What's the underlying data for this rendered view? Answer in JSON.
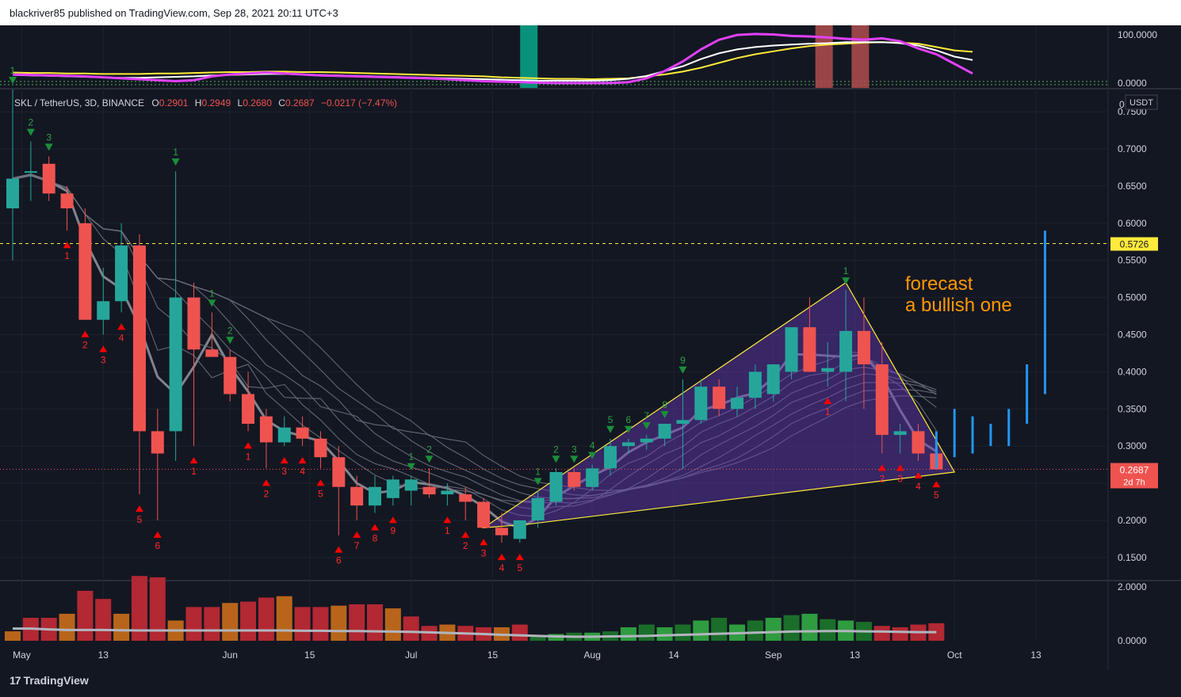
{
  "header": {
    "publisher": "blackriver85 published on TradingView.com, Sep 28, 2021 20:11 UTC+3"
  },
  "footer": {
    "brand": "TradingView"
  },
  "symbol": {
    "name": "SKL / TetherUS, 3D, BINANCE",
    "o_label": "O",
    "o": "0.2901",
    "h_label": "H",
    "h": "0.2949",
    "l_label": "L",
    "l": "0.2680",
    "c_label": "C",
    "c": "0.2687",
    "change": "−0.0217 (−7.47%)",
    "currency": "USDT",
    "top_axis_stub": "0"
  },
  "colors": {
    "up": "#26a69a",
    "down": "#ef5350",
    "background": "#131722",
    "annotation": "#ff9800"
  },
  "annotation": {
    "line1": "forecast",
    "line2": "a bullish one"
  },
  "price_labels": {
    "level": "0.5726",
    "level_value": 0.5726,
    "last": "0.2687",
    "last_value": 0.2687,
    "countdown": "2d 7h"
  },
  "chart_data": {
    "type": "candlestick",
    "price_axis": {
      "ticks": [
        "0.7500",
        "0.7000",
        "0.6500",
        "0.6000",
        "0.5500",
        "0.5000",
        "0.4500",
        "0.4000",
        "0.3500",
        "0.3000",
        "0.2500",
        "0.2000",
        "0.1500"
      ],
      "tick_values": [
        0.75,
        0.7,
        0.65,
        0.6,
        0.55,
        0.5,
        0.45,
        0.4,
        0.35,
        0.3,
        0.25,
        0.2,
        0.15
      ],
      "range": [
        0.12,
        0.78
      ]
    },
    "time_axis": {
      "labels": [
        "May",
        "13",
        "Jun",
        "15",
        "Jul",
        "15",
        "Aug",
        "14",
        "Sep",
        "13",
        "Oct",
        "13"
      ],
      "label_bars": [
        0.5,
        5,
        12,
        16.4,
        22,
        26.5,
        32,
        36.5,
        42,
        46.5,
        52,
        56.5
      ],
      "bars_total": 60
    },
    "candles": [
      {
        "o": 0.62,
        "h": 0.78,
        "l": 0.55,
        "c": 0.66
      },
      {
        "o": 0.67,
        "h": 0.71,
        "l": 0.63,
        "c": 0.67
      },
      {
        "o": 0.68,
        "h": 0.69,
        "l": 0.63,
        "c": 0.64
      },
      {
        "o": 0.64,
        "h": 0.65,
        "l": 0.59,
        "c": 0.62
      },
      {
        "o": 0.6,
        "h": 0.62,
        "l": 0.47,
        "c": 0.47
      },
      {
        "o": 0.47,
        "h": 0.54,
        "l": 0.45,
        "c": 0.495
      },
      {
        "o": 0.495,
        "h": 0.6,
        "l": 0.48,
        "c": 0.57
      },
      {
        "o": 0.57,
        "h": 0.585,
        "l": 0.235,
        "c": 0.32
      },
      {
        "o": 0.32,
        "h": 0.35,
        "l": 0.2,
        "c": 0.29
      },
      {
        "o": 0.32,
        "h": 0.67,
        "l": 0.28,
        "c": 0.5
      },
      {
        "o": 0.5,
        "h": 0.52,
        "l": 0.3,
        "c": 0.43
      },
      {
        "o": 0.43,
        "h": 0.48,
        "l": 0.42,
        "c": 0.42
      },
      {
        "o": 0.42,
        "h": 0.43,
        "l": 0.36,
        "c": 0.37
      },
      {
        "o": 0.37,
        "h": 0.4,
        "l": 0.32,
        "c": 0.33
      },
      {
        "o": 0.34,
        "h": 0.35,
        "l": 0.27,
        "c": 0.305
      },
      {
        "o": 0.305,
        "h": 0.34,
        "l": 0.3,
        "c": 0.325
      },
      {
        "o": 0.325,
        "h": 0.34,
        "l": 0.3,
        "c": 0.31
      },
      {
        "o": 0.31,
        "h": 0.32,
        "l": 0.27,
        "c": 0.285
      },
      {
        "o": 0.285,
        "h": 0.3,
        "l": 0.18,
        "c": 0.245
      },
      {
        "o": 0.245,
        "h": 0.26,
        "l": 0.2,
        "c": 0.22
      },
      {
        "o": 0.22,
        "h": 0.26,
        "l": 0.21,
        "c": 0.245
      },
      {
        "o": 0.23,
        "h": 0.26,
        "l": 0.22,
        "c": 0.255
      },
      {
        "o": 0.24,
        "h": 0.26,
        "l": 0.22,
        "c": 0.255
      },
      {
        "o": 0.245,
        "h": 0.27,
        "l": 0.23,
        "c": 0.235
      },
      {
        "o": 0.235,
        "h": 0.25,
        "l": 0.22,
        "c": 0.24
      },
      {
        "o": 0.235,
        "h": 0.245,
        "l": 0.2,
        "c": 0.225
      },
      {
        "o": 0.225,
        "h": 0.23,
        "l": 0.19,
        "c": 0.19
      },
      {
        "o": 0.19,
        "h": 0.21,
        "l": 0.17,
        "c": 0.18
      },
      {
        "o": 0.175,
        "h": 0.2,
        "l": 0.17,
        "c": 0.2
      },
      {
        "o": 0.2,
        "h": 0.24,
        "l": 0.19,
        "c": 0.23
      },
      {
        "o": 0.225,
        "h": 0.27,
        "l": 0.22,
        "c": 0.265
      },
      {
        "o": 0.265,
        "h": 0.27,
        "l": 0.24,
        "c": 0.245
      },
      {
        "o": 0.245,
        "h": 0.275,
        "l": 0.24,
        "c": 0.27
      },
      {
        "o": 0.27,
        "h": 0.31,
        "l": 0.26,
        "c": 0.3
      },
      {
        "o": 0.3,
        "h": 0.31,
        "l": 0.29,
        "c": 0.305
      },
      {
        "o": 0.305,
        "h": 0.315,
        "l": 0.295,
        "c": 0.31
      },
      {
        "o": 0.31,
        "h": 0.33,
        "l": 0.3,
        "c": 0.33
      },
      {
        "o": 0.33,
        "h": 0.39,
        "l": 0.27,
        "c": 0.335
      },
      {
        "o": 0.335,
        "h": 0.39,
        "l": 0.33,
        "c": 0.38
      },
      {
        "o": 0.38,
        "h": 0.39,
        "l": 0.34,
        "c": 0.35
      },
      {
        "o": 0.35,
        "h": 0.38,
        "l": 0.34,
        "c": 0.365
      },
      {
        "o": 0.365,
        "h": 0.41,
        "l": 0.35,
        "c": 0.4
      },
      {
        "o": 0.37,
        "h": 0.41,
        "l": 0.36,
        "c": 0.41
      },
      {
        "o": 0.4,
        "h": 0.46,
        "l": 0.39,
        "c": 0.46
      },
      {
        "o": 0.46,
        "h": 0.5,
        "l": 0.4,
        "c": 0.4
      },
      {
        "o": 0.4,
        "h": 0.44,
        "l": 0.38,
        "c": 0.405
      },
      {
        "o": 0.4,
        "h": 0.51,
        "l": 0.36,
        "c": 0.455
      },
      {
        "o": 0.455,
        "h": 0.5,
        "l": 0.35,
        "c": 0.41
      },
      {
        "o": 0.41,
        "h": 0.44,
        "l": 0.29,
        "c": 0.315
      },
      {
        "o": 0.315,
        "h": 0.33,
        "l": 0.29,
        "c": 0.32
      },
      {
        "o": 0.32,
        "h": 0.33,
        "l": 0.28,
        "c": 0.29
      },
      {
        "o": 0.2901,
        "h": 0.2949,
        "l": 0.268,
        "c": 0.2687
      }
    ],
    "forecast_bars": [
      {
        "bar": 51,
        "low": 0.27,
        "high": 0.32
      },
      {
        "bar": 52,
        "low": 0.285,
        "high": 0.35
      },
      {
        "bar": 53,
        "low": 0.29,
        "high": 0.34
      },
      {
        "bar": 54,
        "low": 0.3,
        "high": 0.33
      },
      {
        "bar": 55,
        "low": 0.3,
        "high": 0.35
      },
      {
        "bar": 56,
        "low": 0.33,
        "high": 0.41
      },
      {
        "bar": 57,
        "low": 0.37,
        "high": 0.59
      }
    ],
    "sell_counts": [
      {
        "bar": 0,
        "label": "1"
      },
      {
        "bar": 1,
        "label": "2"
      },
      {
        "bar": 2,
        "label": "3"
      },
      {
        "bar": 9,
        "label": "1"
      },
      {
        "bar": 11,
        "label": "1"
      },
      {
        "bar": 12,
        "label": "2"
      },
      {
        "bar": 22,
        "label": "1"
      },
      {
        "bar": 23,
        "label": "2"
      },
      {
        "bar": 29,
        "label": "1"
      },
      {
        "bar": 30,
        "label": "2"
      },
      {
        "bar": 31,
        "label": "3"
      },
      {
        "bar": 32,
        "label": "4"
      },
      {
        "bar": 33,
        "label": "5"
      },
      {
        "bar": 34,
        "label": "6"
      },
      {
        "bar": 35,
        "label": "7"
      },
      {
        "bar": 36,
        "label": "8"
      },
      {
        "bar": 37,
        "label": "9"
      },
      {
        "bar": 46,
        "label": "1"
      }
    ],
    "buy_counts": [
      {
        "bar": 3,
        "label": "1"
      },
      {
        "bar": 4,
        "label": "2"
      },
      {
        "bar": 5,
        "label": "3"
      },
      {
        "bar": 6,
        "label": "4"
      },
      {
        "bar": 7,
        "label": "5"
      },
      {
        "bar": 8,
        "label": "6"
      },
      {
        "bar": 10,
        "label": "1"
      },
      {
        "bar": 13,
        "label": "1"
      },
      {
        "bar": 14,
        "label": "2"
      },
      {
        "bar": 15,
        "label": "3"
      },
      {
        "bar": 16,
        "label": "4"
      },
      {
        "bar": 17,
        "label": "5"
      },
      {
        "bar": 18,
        "label": "6"
      },
      {
        "bar": 19,
        "label": "7"
      },
      {
        "bar": 20,
        "label": "8"
      },
      {
        "bar": 21,
        "label": "9"
      },
      {
        "bar": 24,
        "label": "1"
      },
      {
        "bar": 25,
        "label": "2"
      },
      {
        "bar": 26,
        "label": "3"
      },
      {
        "bar": 27,
        "label": "4"
      },
      {
        "bar": 28,
        "label": "5"
      },
      {
        "bar": 45,
        "label": "1"
      },
      {
        "bar": 48,
        "label": "2"
      },
      {
        "bar": 49,
        "label": "3"
      },
      {
        "bar": 50,
        "label": "4"
      },
      {
        "bar": 51,
        "label": "5"
      }
    ],
    "triangle": [
      {
        "bar": 26,
        "price": 0.19
      },
      {
        "bar": 46,
        "price": 0.52
      },
      {
        "bar": 52,
        "price": 0.265
      },
      {
        "bar": 28.5,
        "price": 0.195
      }
    ],
    "vol_axis": {
      "ticks": [
        "2.0000",
        "0.0000"
      ],
      "tick_values": [
        2,
        0
      ],
      "range": [
        0,
        2.2
      ]
    },
    "volume": [
      0.35,
      0.85,
      0.85,
      1.0,
      1.85,
      1.55,
      1.0,
      2.4,
      2.35,
      0.75,
      1.25,
      1.25,
      1.4,
      1.45,
      1.6,
      1.65,
      1.25,
      1.25,
      1.3,
      1.35,
      1.35,
      1.2,
      0.9,
      0.55,
      0.6,
      0.55,
      0.5,
      0.5,
      0.6,
      0.2,
      0.25,
      0.3,
      0.3,
      0.35,
      0.5,
      0.6,
      0.5,
      0.6,
      0.75,
      0.85,
      0.6,
      0.75,
      0.85,
      0.95,
      1.0,
      0.8,
      0.75,
      0.7,
      0.55,
      0.5,
      0.6,
      0.65
    ],
    "vol_ma": [
      0.45,
      0.45,
      0.42,
      0.4,
      0.4,
      0.4,
      0.39,
      0.38,
      0.38,
      0.38,
      0.38,
      0.38,
      0.38,
      0.38,
      0.38,
      0.38,
      0.37,
      0.37,
      0.36,
      0.36,
      0.35,
      0.34,
      0.33,
      0.31,
      0.29,
      0.27,
      0.25,
      0.22,
      0.2,
      0.18,
      0.16,
      0.15,
      0.15,
      0.16,
      0.17,
      0.18,
      0.2,
      0.22,
      0.24,
      0.26,
      0.28,
      0.3,
      0.32,
      0.34,
      0.35,
      0.36,
      0.36,
      0.35,
      0.34,
      0.33,
      0.32,
      0.32
    ],
    "osc_axis": {
      "ticks": [
        "100.0000",
        "0.0000"
      ],
      "tick_values": [
        100,
        0
      ],
      "range": [
        -10,
        120
      ]
    },
    "osc_magenta": [
      18,
      17,
      16,
      15,
      14,
      12,
      10,
      8,
      6,
      4,
      6,
      14,
      18,
      20,
      22,
      20,
      18,
      16,
      15,
      14,
      13,
      12,
      11,
      10,
      8,
      6,
      4,
      3,
      2,
      1,
      0,
      0,
      0,
      0,
      2,
      10,
      25,
      45,
      70,
      90,
      100,
      102,
      101,
      98,
      97,
      95,
      92,
      90,
      93,
      87,
      72,
      60,
      40,
      20
    ],
    "osc_white": [
      17,
      16,
      15,
      14,
      13,
      12,
      11,
      11,
      12,
      13,
      14,
      16,
      17,
      18,
      19,
      19,
      18,
      17,
      16,
      15,
      14,
      13,
      12,
      11,
      10,
      9,
      8,
      7,
      6,
      5,
      5,
      5,
      5,
      6,
      9,
      15,
      25,
      35,
      50,
      62,
      70,
      75,
      78,
      80,
      82,
      83,
      85,
      85,
      85,
      83,
      78,
      68,
      55,
      48
    ],
    "osc_yellow": [
      22,
      21,
      21,
      20,
      20,
      19,
      19,
      19,
      20,
      20,
      21,
      22,
      23,
      23,
      24,
      24,
      23,
      23,
      22,
      21,
      20,
      19,
      18,
      17,
      16,
      15,
      14,
      12,
      11,
      10,
      9,
      9,
      8,
      9,
      10,
      14,
      18,
      24,
      32,
      42,
      52,
      60,
      66,
      72,
      77,
      80,
      82,
      84,
      85,
      84,
      82,
      75,
      68,
      65
    ],
    "osc_highlights": [
      {
        "bar": 28.5,
        "type": "green"
      },
      {
        "bar": 44.8,
        "type": "red"
      },
      {
        "bar": 46.8,
        "type": "red"
      }
    ]
  }
}
